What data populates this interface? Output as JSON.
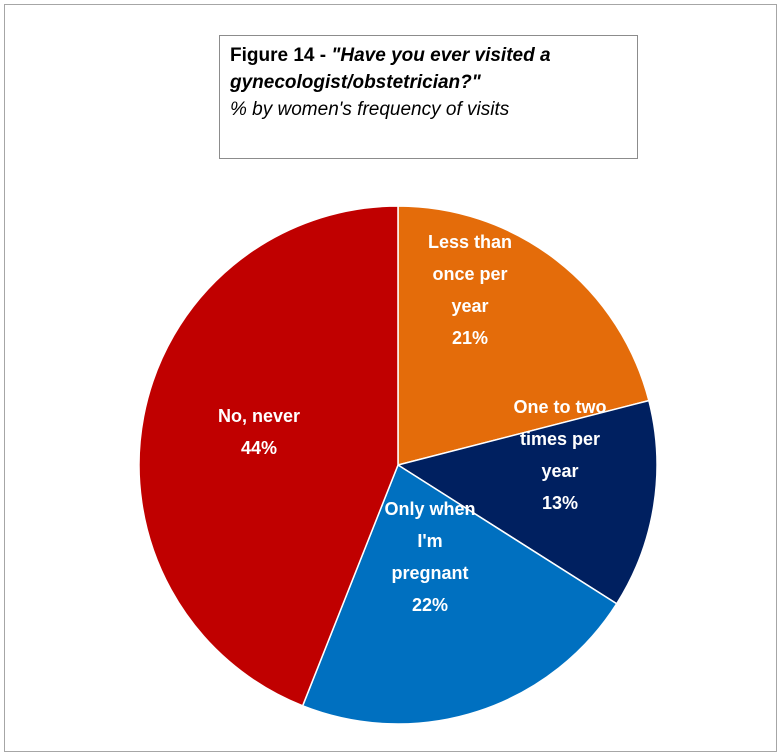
{
  "chart_data": {
    "type": "pie",
    "title_prefix": "Figure 14 - ",
    "title_question": "\"Have you ever visited a gynecologist/obstetrician?\"",
    "subtitle": "% by women's frequency of visits",
    "slices": [
      {
        "label_lines": [
          "Less than",
          "once per",
          "year"
        ],
        "value": 21,
        "value_label": "21%",
        "color": "#e46c0a"
      },
      {
        "label_lines": [
          "One to two",
          "times per",
          "year"
        ],
        "value": 13,
        "value_label": "13%",
        "color": "#002060"
      },
      {
        "label_lines": [
          "Only when",
          "I'm",
          "pregnant"
        ],
        "value": 22,
        "value_label": "22%",
        "color": "#0070c0"
      },
      {
        "label_lines": [
          "No, never"
        ],
        "value": 44,
        "value_label": "44%",
        "color": "#c00000"
      }
    ]
  }
}
